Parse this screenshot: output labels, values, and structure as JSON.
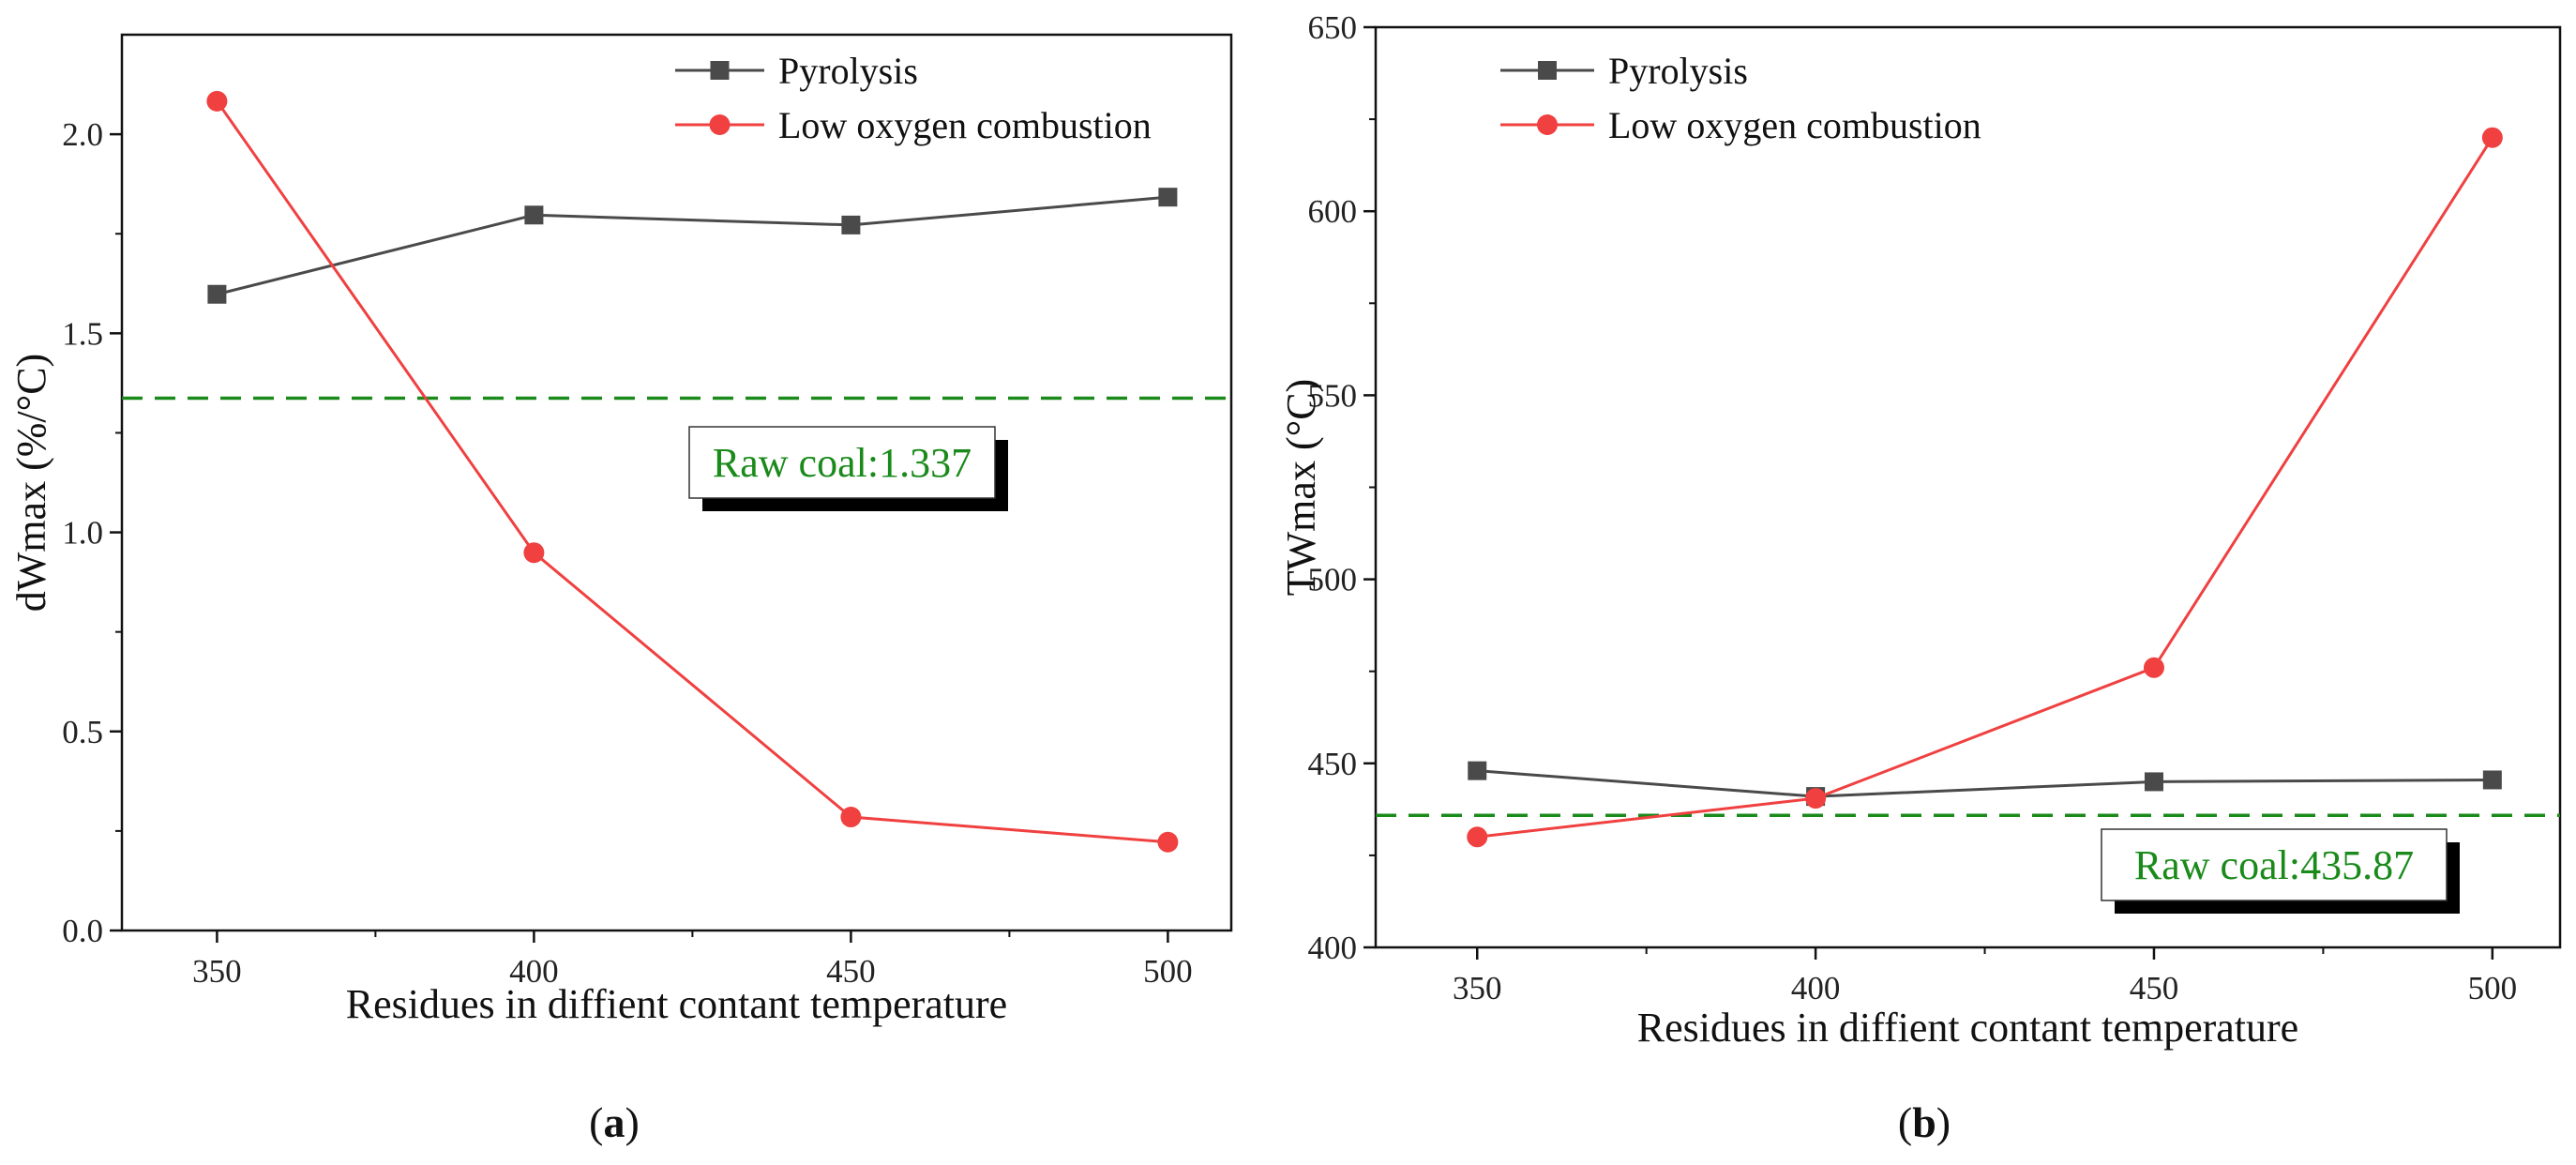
{
  "chart_data": [
    {
      "type": "line",
      "panel_label": "a",
      "categories": [
        350,
        400,
        450,
        500
      ],
      "series": [
        {
          "name": "Pyrolysis",
          "values": [
            1.598,
            1.797,
            1.772,
            1.842
          ],
          "color": "#4a4a4a",
          "marker": "square"
        },
        {
          "name": "Low oxygen combustion",
          "values": [
            2.083,
            0.949,
            0.285,
            0.222
          ],
          "color": "#f04040",
          "marker": "circle"
        }
      ],
      "reference": {
        "value": 1.337,
        "label": "Raw coal:1.337",
        "color": "#1a8a1a"
      },
      "xlabel": "Residues in diffient contant temperature",
      "ylabel": "dWmax (%/°C)",
      "ylim": [
        0,
        2.25
      ],
      "yticks": [
        0.0,
        0.5,
        1.0,
        1.5,
        2.0
      ],
      "ytick_labels": [
        "0.0",
        "0.5",
        "1.0",
        "1.5",
        "2.0"
      ],
      "xlim": [
        335,
        510
      ],
      "xticks": [
        350,
        400,
        450,
        500
      ],
      "xtick_labels": [
        "350",
        "400",
        "450",
        "500"
      ],
      "legend_placement": "top-right"
    },
    {
      "type": "line",
      "panel_label": "b",
      "categories": [
        350,
        400,
        450,
        500
      ],
      "series": [
        {
          "name": "Pyrolysis",
          "values": [
            448,
            441,
            445,
            445.5
          ],
          "color": "#4a4a4a",
          "marker": "square"
        },
        {
          "name": "Low oxygen combustion",
          "values": [
            430,
            440.5,
            476,
            620
          ],
          "color": "#f04040",
          "marker": "circle"
        }
      ],
      "reference": {
        "value": 435.87,
        "label": "Raw coal:435.87",
        "color": "#1a8a1a"
      },
      "xlabel": "Residues in diffient contant temperature",
      "ylabel": "TWmax (°C)",
      "ylim": [
        400,
        650
      ],
      "yticks": [
        400,
        450,
        500,
        550,
        600,
        650
      ],
      "ytick_labels": [
        "400",
        "450",
        "500",
        "550",
        "600",
        "650"
      ],
      "xlim": [
        335,
        510
      ],
      "xticks": [
        350,
        400,
        450,
        500
      ],
      "xtick_labels": [
        "350",
        "400",
        "450",
        "500"
      ],
      "legend_placement": "top-left"
    }
  ]
}
